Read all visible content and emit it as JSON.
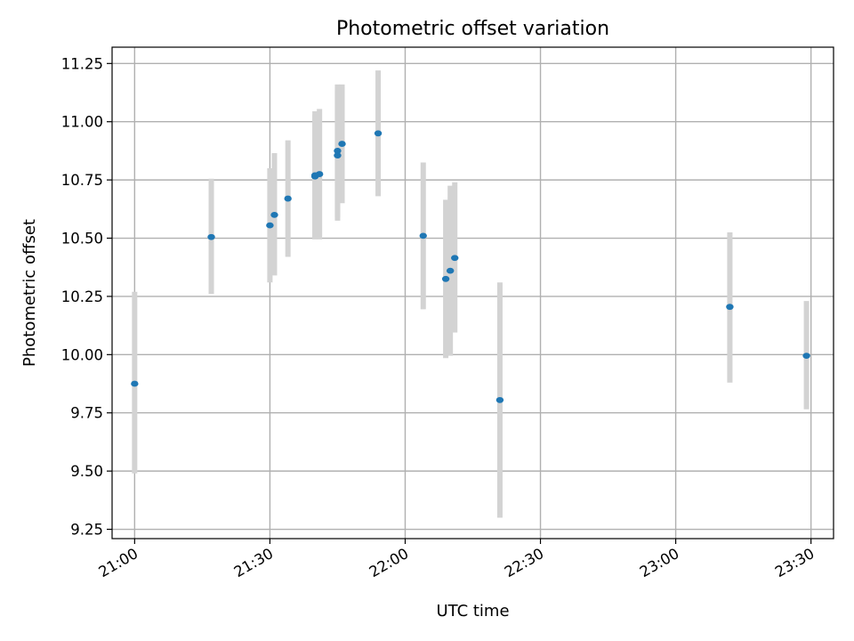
{
  "chart_data": {
    "type": "scatter",
    "title": "Photometric offset variation",
    "xlabel": "UTC time",
    "ylabel": "Photometric offset",
    "grid": true,
    "xlim": [
      "20:55",
      "23:35"
    ],
    "ylim": [
      9.21,
      11.32
    ],
    "x_ticks": [
      "21:00",
      "21:30",
      "22:00",
      "22:30",
      "23:00",
      "23:30"
    ],
    "y_ticks": [
      9.25,
      9.5,
      9.75,
      10.0,
      10.25,
      10.5,
      10.75,
      11.0,
      11.25
    ],
    "y_tick_labels": [
      "9.25",
      "9.50",
      "9.75",
      "10.00",
      "10.25",
      "10.50",
      "10.75",
      "11.00",
      "11.25"
    ],
    "colors": {
      "point": "#1f77b4",
      "error_bar": "#d3d3d3"
    },
    "points": [
      {
        "x": "21:00",
        "y": 9.875,
        "ylo": 9.49,
        "yhi": 10.27
      },
      {
        "x": "21:17",
        "y": 10.505,
        "ylo": 10.26,
        "yhi": 10.755
      },
      {
        "x": "21:30",
        "y": 10.555,
        "ylo": 10.31,
        "yhi": 10.8
      },
      {
        "x": "21:31",
        "y": 10.6,
        "ylo": 10.34,
        "yhi": 10.865
      },
      {
        "x": "21:34",
        "y": 10.67,
        "ylo": 10.42,
        "yhi": 10.92
      },
      {
        "x": "21:40",
        "y": 10.77,
        "ylo": 10.495,
        "yhi": 11.045
      },
      {
        "x": "21:40",
        "y": 10.765,
        "ylo": 10.5,
        "yhi": 11.03
      },
      {
        "x": "21:41",
        "y": 10.775,
        "ylo": 10.495,
        "yhi": 11.055
      },
      {
        "x": "21:45",
        "y": 10.875,
        "ylo": 10.59,
        "yhi": 11.16
      },
      {
        "x": "21:45",
        "y": 10.855,
        "ylo": 10.575,
        "yhi": 11.135
      },
      {
        "x": "21:46",
        "y": 10.905,
        "ylo": 10.65,
        "yhi": 11.16
      },
      {
        "x": "21:54",
        "y": 10.95,
        "ylo": 10.68,
        "yhi": 11.22
      },
      {
        "x": "22:04",
        "y": 10.51,
        "ylo": 10.195,
        "yhi": 10.825
      },
      {
        "x": "22:09",
        "y": 10.325,
        "ylo": 9.985,
        "yhi": 10.665
      },
      {
        "x": "22:10",
        "y": 10.36,
        "ylo": 9.995,
        "yhi": 10.725
      },
      {
        "x": "22:11",
        "y": 10.415,
        "ylo": 10.095,
        "yhi": 10.74
      },
      {
        "x": "22:21",
        "y": 9.805,
        "ylo": 9.3,
        "yhi": 10.31
      },
      {
        "x": "23:12",
        "y": 10.205,
        "ylo": 9.88,
        "yhi": 10.525
      },
      {
        "x": "23:29",
        "y": 9.995,
        "ylo": 9.765,
        "yhi": 10.23
      }
    ]
  }
}
